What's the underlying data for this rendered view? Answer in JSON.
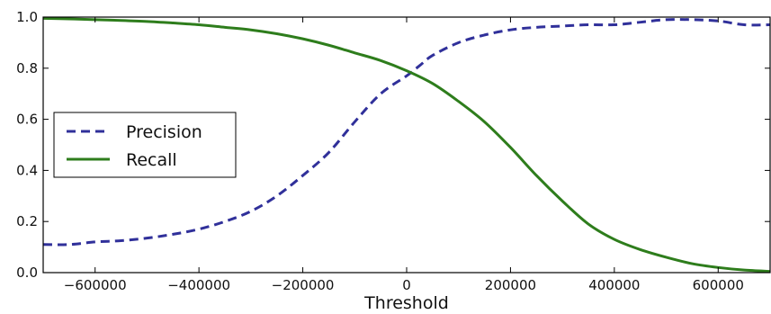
{
  "chart_data": {
    "type": "line",
    "title": "",
    "xlabel": "Threshold",
    "ylabel": "",
    "xlim": [
      -700000,
      700000
    ],
    "ylim": [
      0.0,
      1.0
    ],
    "x_ticks": [
      -600000,
      -400000,
      -200000,
      0,
      200000,
      400000,
      600000
    ],
    "x_tick_labels": [
      "−600000",
      "−400000",
      "−200000",
      "0",
      "200000",
      "400000",
      "600000"
    ],
    "y_ticks": [
      0.0,
      0.2,
      0.4,
      0.6,
      0.8,
      1.0
    ],
    "y_tick_labels": [
      "0.0",
      "0.2",
      "0.4",
      "0.6",
      "0.8",
      "1.0"
    ],
    "grid": false,
    "legend_position": "center-left",
    "series": [
      {
        "name": "Precision",
        "color": "#30309a",
        "style": "dashed",
        "x": [
          -700000,
          -650000,
          -600000,
          -550000,
          -500000,
          -450000,
          -400000,
          -350000,
          -300000,
          -250000,
          -200000,
          -150000,
          -100000,
          -50000,
          0,
          25000,
          50000,
          100000,
          150000,
          200000,
          250000,
          300000,
          350000,
          400000,
          450000,
          500000,
          550000,
          600000,
          650000,
          700000
        ],
        "y": [
          0.11,
          0.11,
          0.12,
          0.125,
          0.135,
          0.15,
          0.17,
          0.2,
          0.24,
          0.3,
          0.38,
          0.47,
          0.59,
          0.7,
          0.77,
          0.81,
          0.85,
          0.9,
          0.93,
          0.95,
          0.96,
          0.965,
          0.97,
          0.97,
          0.98,
          0.99,
          0.99,
          0.985,
          0.97,
          0.97
        ]
      },
      {
        "name": "Recall",
        "color": "#2e7d1c",
        "style": "solid",
        "x": [
          -700000,
          -650000,
          -600000,
          -550000,
          -500000,
          -450000,
          -400000,
          -350000,
          -300000,
          -250000,
          -200000,
          -150000,
          -100000,
          -50000,
          0,
          50000,
          100000,
          150000,
          200000,
          250000,
          300000,
          350000,
          400000,
          450000,
          500000,
          550000,
          600000,
          650000,
          700000
        ],
        "y": [
          0.995,
          0.993,
          0.99,
          0.987,
          0.983,
          0.977,
          0.97,
          0.96,
          0.95,
          0.935,
          0.915,
          0.89,
          0.86,
          0.83,
          0.79,
          0.74,
          0.67,
          0.59,
          0.49,
          0.38,
          0.28,
          0.19,
          0.13,
          0.09,
          0.06,
          0.035,
          0.02,
          0.01,
          0.005
        ]
      }
    ]
  }
}
